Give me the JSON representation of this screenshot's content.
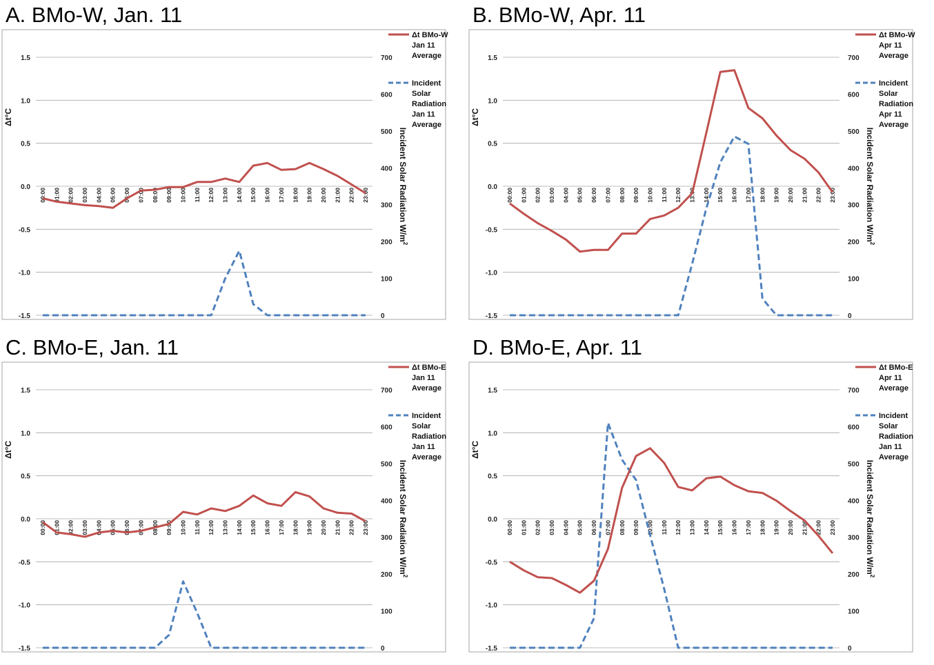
{
  "chart_data": [
    {
      "type": "line",
      "panel_title": "A.  BMo-W, Jan. 11",
      "ylabel": "Δt°C",
      "y2label": "Incident Solar Radiation W/m",
      "y2label_sup": "2",
      "ylim": [
        -1.5,
        1.5
      ],
      "y_ticks": [
        "1.5",
        "1.0",
        "0.5",
        "0.0",
        "-0.5",
        "-1.0",
        "-1.5"
      ],
      "y2lim": [
        0,
        700
      ],
      "y2_ticks": [
        "700",
        "600",
        "500",
        "400",
        "300",
        "200",
        "100",
        "0"
      ],
      "categories": [
        "00:00",
        "01:00",
        "02:00",
        "03:00",
        "04:00",
        "05:00",
        "06:00",
        "07:00",
        "08:00",
        "09:00",
        "10:00",
        "11:00",
        "12:00",
        "13:00",
        "14:00",
        "15:00",
        "16:00",
        "17:00",
        "18:00",
        "19:00",
        "20:00",
        "21:00",
        "22:00",
        "23:00"
      ],
      "series": [
        {
          "name": "Δt BMo-W Jan 11 Average",
          "legend_lines": [
            "Δt BMo-W",
            "Jan 11",
            "Average"
          ],
          "axis": "left",
          "style": "solid",
          "color": "#c0504d",
          "values": [
            -0.14,
            -0.18,
            -0.2,
            -0.22,
            -0.23,
            -0.25,
            -0.14,
            -0.05,
            -0.04,
            -0.01,
            -0.01,
            0.05,
            0.05,
            0.09,
            0.05,
            0.24,
            0.27,
            0.19,
            0.2,
            0.27,
            0.2,
            0.12,
            0.02,
            -0.08
          ]
        },
        {
          "name": "Incident Solar Radiation Jan 11 Average",
          "legend_lines": [
            "Incident",
            "Solar",
            "Radiation",
            "Jan 11",
            "Average"
          ],
          "axis": "right",
          "style": "dashed",
          "color": "#4f81bd",
          "values": [
            0,
            0,
            0,
            0,
            0,
            0,
            0,
            0,
            0,
            0,
            0,
            0,
            0,
            100,
            175,
            30,
            0,
            0,
            0,
            0,
            0,
            0,
            0,
            0
          ]
        }
      ]
    },
    {
      "type": "line",
      "panel_title": "B.  BMo-W, Apr. 11",
      "ylabel": "Δt°C",
      "y2label": "Incident Solar Radiation W/m",
      "y2label_sup": "2",
      "ylim": [
        -1.5,
        1.5
      ],
      "y_ticks": [
        "1.5",
        "1.0",
        "0.5",
        "0.0",
        "-0.5",
        "-1.0",
        "-1.5"
      ],
      "y2lim": [
        0,
        700
      ],
      "y2_ticks": [
        "700",
        "600",
        "500",
        "400",
        "300",
        "200",
        "100",
        "0"
      ],
      "categories": [
        "00:00",
        "01:00",
        "02:00",
        "03:00",
        "04:00",
        "05:00",
        "06:00",
        "07:00",
        "08:00",
        "09:00",
        "10:00",
        "11:00",
        "12:00",
        "13:00",
        "14:00",
        "15:00",
        "16:00",
        "17:00",
        "18:00",
        "19:00",
        "20:00",
        "21:00",
        "22:00",
        "23:00"
      ],
      "series": [
        {
          "name": "Δt BMo-W Apr 11 Average",
          "legend_lines": [
            "Δt BMo-W",
            "Apr 11",
            "Average"
          ],
          "axis": "left",
          "style": "solid",
          "color": "#c0504d",
          "values": [
            -0.2,
            -0.32,
            -0.43,
            -0.52,
            -0.62,
            -0.76,
            -0.74,
            -0.74,
            -0.55,
            -0.55,
            -0.38,
            -0.34,
            -0.25,
            -0.08,
            0.62,
            1.33,
            1.35,
            0.91,
            0.79,
            0.59,
            0.42,
            0.32,
            0.16,
            -0.07
          ]
        },
        {
          "name": "Incident Solar Radiation Apr 11 Average",
          "legend_lines": [
            "Incident",
            "Solar",
            "Radiation",
            "Apr 11",
            "Average"
          ],
          "axis": "right",
          "style": "dashed",
          "color": "#4f81bd",
          "values": [
            0,
            0,
            0,
            0,
            0,
            0,
            0,
            0,
            0,
            0,
            0,
            0,
            0,
            140,
            290,
            415,
            485,
            465,
            45,
            0,
            0,
            0,
            0,
            0
          ]
        }
      ]
    },
    {
      "type": "line",
      "panel_title": "C.  BMo-E, Jan. 11",
      "ylabel": "Δt°C",
      "y2label": "Incident Solar Radiation W/m",
      "y2label_sup": "2",
      "ylim": [
        -1.5,
        1.5
      ],
      "y_ticks": [
        "1.5",
        "1.0",
        "0.5",
        "0.0",
        "-0.5",
        "-1.0",
        "-1.5"
      ],
      "y2lim": [
        0,
        700
      ],
      "y2_ticks": [
        "700",
        "600",
        "500",
        "400",
        "300",
        "200",
        "100",
        "0"
      ],
      "categories": [
        "00:00",
        "01:00",
        "02:00",
        "03:00",
        "04:00",
        "05:00",
        "06:00",
        "07:00",
        "08:00",
        "09:00",
        "10:00",
        "11:00",
        "12:00",
        "13:00",
        "14:00",
        "15:00",
        "16:00",
        "17:00",
        "18:00",
        "19:00",
        "20:00",
        "21:00",
        "22:00",
        "23:00"
      ],
      "series": [
        {
          "name": "Δt BMo-E Jan 11 Average",
          "legend_lines": [
            "Δt BMo-E",
            "Jan 11",
            "Average"
          ],
          "axis": "left",
          "style": "solid",
          "color": "#c0504d",
          "values": [
            -0.04,
            -0.16,
            -0.18,
            -0.21,
            -0.16,
            -0.14,
            -0.16,
            -0.14,
            -0.1,
            -0.06,
            0.08,
            0.05,
            0.12,
            0.09,
            0.15,
            0.27,
            0.18,
            0.15,
            0.31,
            0.26,
            0.12,
            0.07,
            0.06,
            -0.03
          ]
        },
        {
          "name": "Incident Solar Radiation Jan 11 Average",
          "legend_lines": [
            "Incident",
            "Solar",
            "Radiation",
            "Jan 11",
            "Average"
          ],
          "axis": "right",
          "style": "dashed",
          "color": "#4f81bd",
          "values": [
            0,
            0,
            0,
            0,
            0,
            0,
            0,
            0,
            0,
            35,
            180,
            95,
            0,
            0,
            0,
            0,
            0,
            0,
            0,
            0,
            0,
            0,
            0,
            0
          ]
        }
      ]
    },
    {
      "type": "line",
      "panel_title": "D.  BMo-E, Apr. 11",
      "ylabel": "Δt°C",
      "y2label": "Incident Solar Radiation W/m",
      "y2label_sup": "2",
      "ylim": [
        -1.5,
        1.5
      ],
      "y_ticks": [
        "1.5",
        "1.0",
        "0.5",
        "0.0",
        "-0.5",
        "-1.0",
        "-1.5"
      ],
      "y2lim": [
        0,
        700
      ],
      "y2_ticks": [
        "700",
        "600",
        "500",
        "400",
        "300",
        "200",
        "100",
        "0"
      ],
      "categories": [
        "00:00",
        "01:00",
        "02:00",
        "03:00",
        "04:00",
        "05:00",
        "06:00",
        "07:00",
        "08:00",
        "09:00",
        "10:00",
        "11:00",
        "12:00",
        "13:00",
        "14:00",
        "15:00",
        "16:00",
        "17:00",
        "18:00",
        "19:00",
        "20:00",
        "21:00",
        "22:00",
        "23:00"
      ],
      "series": [
        {
          "name": "Δt BMo-E Apr 11 Average",
          "legend_lines": [
            "Δt BMo-E",
            "Apr 11",
            "Average"
          ],
          "axis": "left",
          "style": "solid",
          "color": "#c0504d",
          "values": [
            -0.5,
            -0.6,
            -0.68,
            -0.69,
            -0.77,
            -0.86,
            -0.72,
            -0.35,
            0.36,
            0.73,
            0.82,
            0.65,
            0.37,
            0.33,
            0.47,
            0.49,
            0.39,
            0.32,
            0.3,
            0.21,
            0.09,
            -0.02,
            -0.2,
            -0.4
          ]
        },
        {
          "name": "Incident Solar Radiation Jan 11 Average",
          "legend_lines": [
            "Incident",
            "Solar",
            "Radiation",
            "Jan 11",
            "Average"
          ],
          "axis": "right",
          "style": "dashed",
          "color": "#4f81bd",
          "values": [
            0,
            0,
            0,
            0,
            0,
            0,
            80,
            610,
            510,
            455,
            305,
            160,
            0,
            0,
            0,
            0,
            0,
            0,
            0,
            0,
            0,
            0,
            0,
            0
          ]
        }
      ]
    }
  ]
}
